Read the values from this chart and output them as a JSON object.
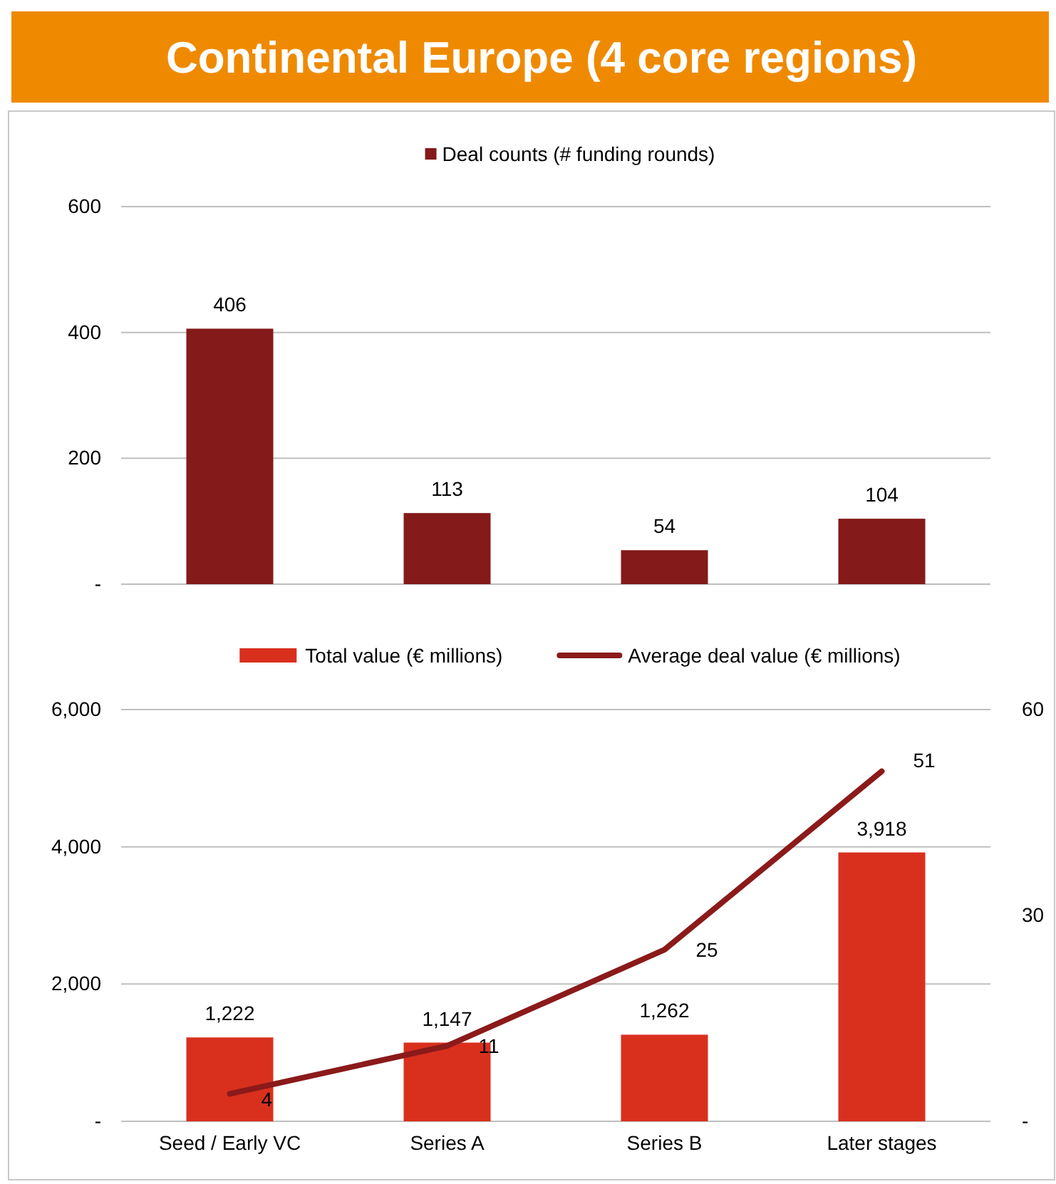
{
  "chart_data": [
    {
      "type": "bar",
      "title": "Continental Europe (4 core regions)",
      "categories": [
        null,
        null,
        null,
        null
      ],
      "series": [
        {
          "name": "Deal counts (# funding rounds)",
          "color": "#841a1a",
          "values": [
            406,
            113,
            54,
            104
          ]
        }
      ],
      "ylim": [
        0,
        600
      ],
      "yticks": [
        {
          "value": 0,
          "label": "-"
        },
        200,
        400,
        600
      ],
      "grid": "y",
      "legend": "top",
      "data_labels": true,
      "tick_labels": "y"
    },
    {
      "type": "bar",
      "categories": [
        "Seed / Early VC",
        "Series A",
        "Series B",
        "Later stages"
      ],
      "series": [
        {
          "name": "Total value (€ millions)",
          "color": "#d9301e",
          "values": [
            1222,
            1147,
            1262,
            3918
          ],
          "value_labels": [
            "1,222",
            "1,147",
            "1,262",
            "3,918"
          ]
        },
        {
          "name": "Average deal value (€ millions)",
          "type": "line",
          "axis": "y2",
          "color": "#8b1a1a",
          "values": [
            4,
            11,
            25,
            51
          ]
        }
      ],
      "ylim": [
        0,
        6000
      ],
      "yticks": [
        {
          "value": 0,
          "label": "-"
        },
        {
          "value": 2000,
          "label": "2,000"
        },
        {
          "value": 4000,
          "label": "4,000"
        },
        {
          "value": 6000,
          "label": "6,000"
        }
      ],
      "y2lim": [
        0,
        60
      ],
      "y2ticks": [
        {
          "value": 0,
          "label": "-"
        },
        30,
        60
      ],
      "grid": "y",
      "legend": "top",
      "data_labels": true,
      "line_style": "solid",
      "marker": "none"
    }
  ]
}
